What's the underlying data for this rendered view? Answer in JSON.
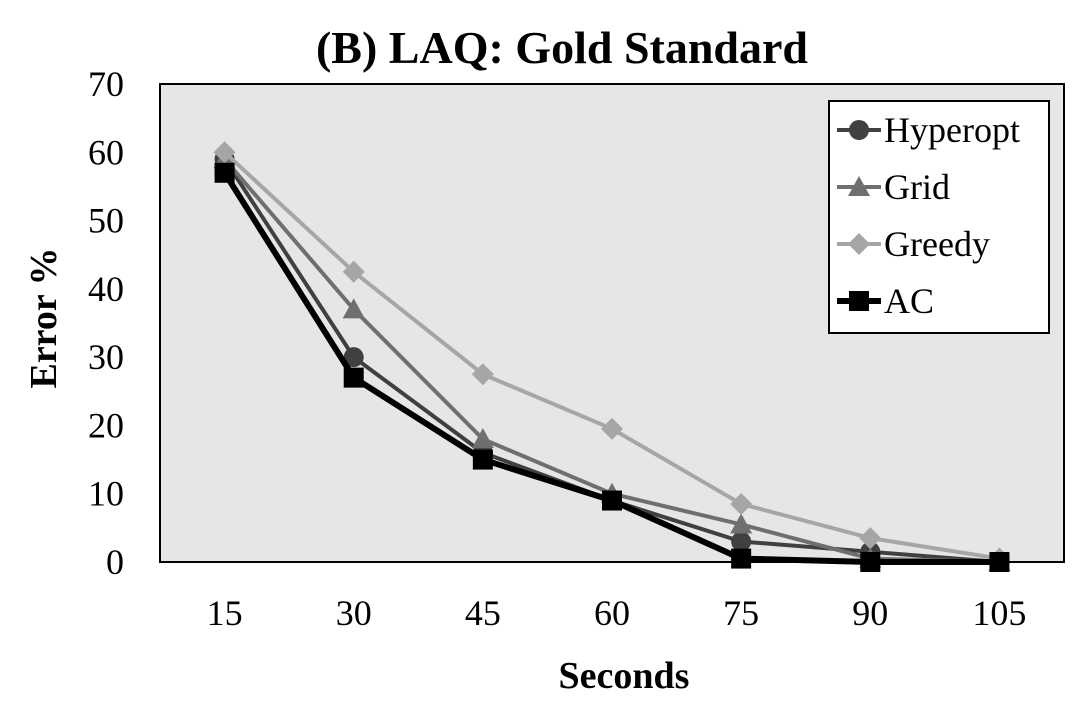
{
  "chart_data": {
    "type": "line",
    "title": "(B) LAQ: Gold Standard",
    "xlabel": "Seconds",
    "ylabel": "Error %",
    "x": [
      15,
      30,
      45,
      60,
      75,
      90,
      105
    ],
    "x_tick_labels": [
      "15",
      "30",
      "45",
      "60",
      "75",
      "90",
      "105"
    ],
    "ylim": [
      0,
      70
    ],
    "y_ticks": [
      0,
      10,
      20,
      30,
      40,
      50,
      60,
      70
    ],
    "y_tick_labels": [
      "0",
      "10",
      "20",
      "30",
      "40",
      "50",
      "60",
      "70"
    ],
    "grid": false,
    "plot_background": "#e6e6e6",
    "legend_position": "top-right",
    "series": [
      {
        "name": "Hyperopt",
        "values": [
          59,
          30,
          16,
          9,
          3,
          1.5,
          0
        ],
        "color": "#404040",
        "marker": "circle"
      },
      {
        "name": "Grid",
        "values": [
          59,
          37,
          18,
          10,
          5.5,
          0.5,
          0
        ],
        "color": "#6f6f6f",
        "marker": "triangle"
      },
      {
        "name": "Greedy",
        "values": [
          60,
          42.5,
          27.5,
          19.5,
          8.5,
          3.5,
          0.5
        ],
        "color": "#a6a6a6",
        "marker": "diamond"
      },
      {
        "name": "AC",
        "values": [
          57,
          27,
          15,
          9,
          0.5,
          0,
          0
        ],
        "color": "#000000",
        "marker": "square"
      }
    ]
  }
}
